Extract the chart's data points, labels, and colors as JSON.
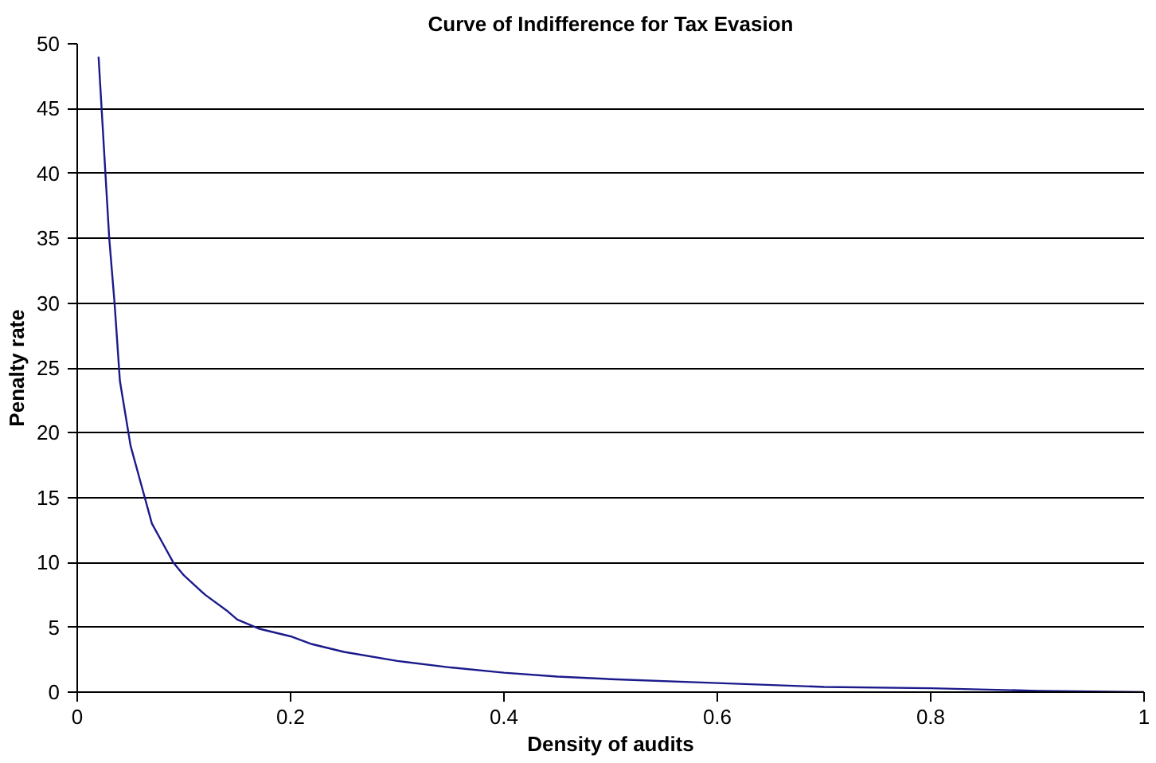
{
  "chart_data": {
    "type": "line",
    "title": "Curve of Indifference for Tax Evasion",
    "xlabel": "Density of audits",
    "ylabel": "Penalty rate",
    "x": [
      0.02,
      0.03,
      0.035,
      0.04,
      0.05,
      0.06,
      0.07,
      0.08,
      0.09,
      0.1,
      0.12,
      0.14,
      0.15,
      0.17,
      0.2,
      0.22,
      0.25,
      0.3,
      0.35,
      0.4,
      0.45,
      0.5,
      0.6,
      0.7,
      0.8,
      0.9,
      1.0
    ],
    "series": [
      {
        "color": "#1a1a8c",
        "values": [
          49,
          35,
          30,
          24,
          19,
          16,
          13,
          11.5,
          10,
          9,
          7.5,
          6.3,
          5.6,
          4.9,
          4.3,
          3.7,
          3.1,
          2.4,
          1.9,
          1.5,
          1.2,
          1.0,
          0.7,
          0.4,
          0.3,
          0.1,
          0
        ]
      }
    ],
    "xlim": [
      0,
      1
    ],
    "xticks": [
      0,
      0.2,
      0.4,
      0.6,
      0.8,
      1
    ],
    "ylim": [
      0,
      50
    ],
    "yticks": [
      0,
      5,
      10,
      15,
      20,
      25,
      30,
      35,
      40,
      45,
      50
    ],
    "grid": "y",
    "marker": "none",
    "line_style": "solid"
  }
}
